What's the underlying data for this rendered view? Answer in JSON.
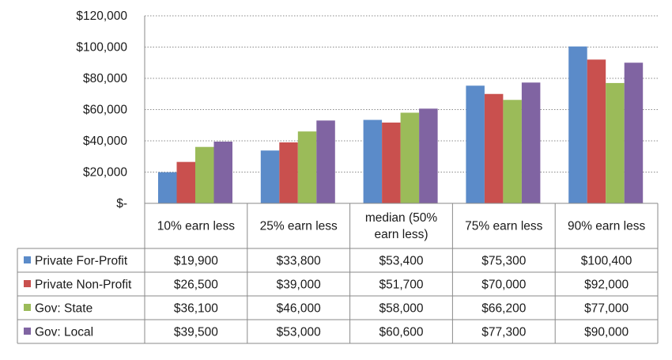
{
  "chart_data": {
    "type": "bar",
    "categories": [
      "10% earn less",
      "25% earn less",
      "median (50% earn less)",
      "75% earn less",
      "90% earn less"
    ],
    "category_lines": [
      [
        "10% earn less"
      ],
      [
        "25% earn less"
      ],
      [
        "median (50%",
        "earn less)"
      ],
      [
        "75% earn less"
      ],
      [
        "90% earn less"
      ]
    ],
    "series": [
      {
        "name": "Private For-Profit",
        "color": "#5B8BC9",
        "values": [
          19900,
          33800,
          53400,
          75300,
          100400
        ],
        "labels": [
          "$19,900",
          "$33,800",
          "$53,400",
          "$75,300",
          "$100,400"
        ]
      },
      {
        "name": "Private Non-Profit",
        "color": "#C9504E",
        "values": [
          26500,
          39000,
          51700,
          70000,
          92000
        ],
        "labels": [
          "$26,500",
          "$39,000",
          "$51,700",
          "$70,000",
          "$92,000"
        ]
      },
      {
        "name": "Gov: State",
        "color": "#9BBB59",
        "values": [
          36100,
          46000,
          58000,
          66200,
          77000
        ],
        "labels": [
          "$36,100",
          "$46,000",
          "$58,000",
          "$66,200",
          "$77,000"
        ]
      },
      {
        "name": "Gov:  Local",
        "color": "#8064A2",
        "values": [
          39500,
          53000,
          60600,
          77300,
          90000
        ],
        "labels": [
          "$39,500",
          "$53,000",
          "$60,600",
          "$77,300",
          "$90,000"
        ]
      }
    ],
    "ylim": [
      0,
      120000
    ],
    "yticks": [
      0,
      20000,
      40000,
      60000,
      80000,
      100000,
      120000
    ],
    "ytick_labels": [
      "$-",
      "$20,000",
      "$40,000",
      "$60,000",
      "$80,000",
      "$100,000",
      "$120,000"
    ],
    "grid": "dotted horizontal",
    "legend": "data table below chart",
    "xlabel": "",
    "ylabel": ""
  }
}
